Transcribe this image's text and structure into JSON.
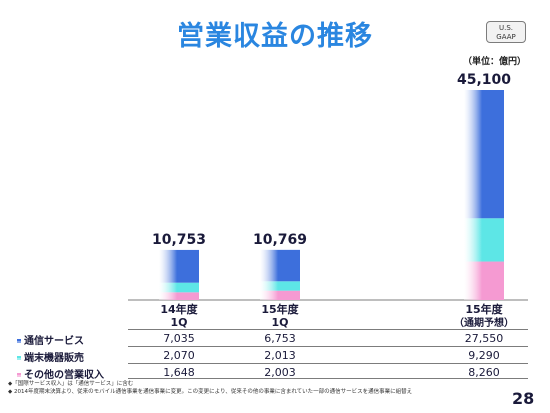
{
  "title": "営業収益の推移",
  "badge": {
    "line1": "U.S.",
    "line2": "GAAP"
  },
  "unit": "（単位：億円）",
  "chart_data": {
    "type": "bar",
    "stacked": true,
    "categories": [
      {
        "line1": "14年度",
        "line2": "1Q"
      },
      {
        "line1": "15年度",
        "line2": "1Q"
      },
      {
        "line1": "15年度",
        "line2": "（通期予想）"
      }
    ],
    "totals": [
      "10,753",
      "10,769",
      "45,100"
    ],
    "series": [
      {
        "name": "通信サービス",
        "values": [
          7035,
          6753,
          27550
        ],
        "labels": [
          "7,035",
          "6,753",
          "27,550"
        ],
        "color": "#3d6fdc"
      },
      {
        "name": "端末機器販売",
        "values": [
          2070,
          2013,
          9290
        ],
        "labels": [
          "2,070",
          "2,013",
          "9,290"
        ],
        "color": "#5de6e6"
      },
      {
        "name": "その他の営業収入",
        "values": [
          1648,
          2003,
          8260
        ],
        "labels": [
          "1,648",
          "2,003",
          "8,260"
        ],
        "color": "#f59ad2"
      }
    ]
  },
  "notes": [
    "◆「国際サービス収入」は「通信サービス」に含む",
    "◆ 2014年度期末決算より、従来のモバイル通信事業を通信事業に変更。この変更により、従来その他の事業に含まれていた一部の通信サービスを通信事業に組替え"
  ],
  "page_number": "28"
}
